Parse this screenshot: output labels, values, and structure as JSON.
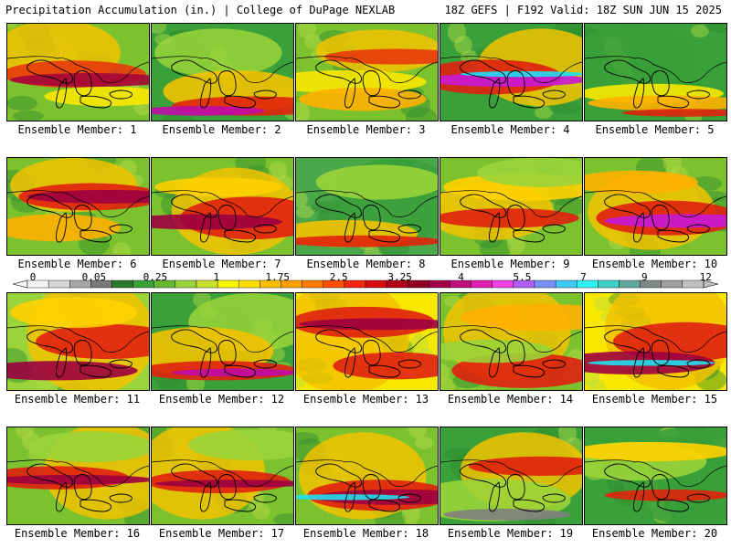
{
  "header": {
    "left": "Precipitation Accumulation (in.) | College of DuPage NEXLAB",
    "right": "18Z GEFS | F192 Valid: 18Z SUN JUN 15 2025"
  },
  "label_prefix": "Ensemble Member: ",
  "members": [
    {
      "n": "1",
      "bands": [
        [
          "#f2c200",
          0.3,
          0.34
        ],
        [
          "#e83a0c",
          0.52,
          0.14
        ],
        [
          "#a4063a",
          0.58,
          0.07
        ],
        [
          "#f8e800",
          0.75,
          0.1
        ]
      ],
      "base": "#7cc22e"
    },
    {
      "n": "2",
      "bands": [
        [
          "#9ad43a",
          0.3,
          0.25
        ],
        [
          "#f2c200",
          0.7,
          0.22
        ],
        [
          "#e0220c",
          0.85,
          0.1
        ],
        [
          "#c00aa8",
          0.9,
          0.05
        ]
      ],
      "base": "#3aa03a"
    },
    {
      "n": "3",
      "bands": [
        [
          "#f2c200",
          0.28,
          0.22
        ],
        [
          "#e83a0c",
          0.34,
          0.08
        ],
        [
          "#f8e800",
          0.6,
          0.12
        ],
        [
          "#ffb000",
          0.78,
          0.12
        ]
      ],
      "base": "#7cc22e"
    },
    {
      "n": "4",
      "bands": [
        [
          "#f2c200",
          0.45,
          0.4
        ],
        [
          "#e02010",
          0.55,
          0.18
        ],
        [
          "#c818d8",
          0.58,
          0.07
        ],
        [
          "#20e0f0",
          0.52,
          0.03
        ]
      ],
      "base": "#3aa03a"
    },
    {
      "n": "5",
      "bands": [
        [
          "#3aa03a",
          0.4,
          0.4
        ],
        [
          "#f8e800",
          0.72,
          0.1
        ],
        [
          "#ffb000",
          0.82,
          0.08
        ],
        [
          "#e0220c",
          0.92,
          0.04
        ]
      ],
      "base": "#3aa03a"
    },
    {
      "n": "6",
      "bands": [
        [
          "#f2c200",
          0.28,
          0.28
        ],
        [
          "#e02010",
          0.4,
          0.14
        ],
        [
          "#9c0040",
          0.4,
          0.07
        ],
        [
          "#ffb000",
          0.72,
          0.14
        ]
      ],
      "base": "#7cc22e"
    },
    {
      "n": "7",
      "bands": [
        [
          "#f2c200",
          0.55,
          0.45
        ],
        [
          "#e02010",
          0.62,
          0.22
        ],
        [
          "#9c0040",
          0.66,
          0.08
        ],
        [
          "#ffd000",
          0.3,
          0.1
        ]
      ],
      "base": "#7cc22e"
    },
    {
      "n": "8",
      "bands": [
        [
          "#3aa03a",
          0.45,
          0.45
        ],
        [
          "#f2c200",
          0.78,
          0.14
        ],
        [
          "#e0220c",
          0.86,
          0.06
        ],
        [
          "#9ad43a",
          0.25,
          0.18
        ]
      ],
      "base": "#4aa84a"
    },
    {
      "n": "9",
      "bands": [
        [
          "#f2c200",
          0.55,
          0.3
        ],
        [
          "#e02010",
          0.62,
          0.1
        ],
        [
          "#ffd000",
          0.3,
          0.14
        ],
        [
          "#9ad43a",
          0.15,
          0.15
        ]
      ],
      "base": "#7cc22e"
    },
    {
      "n": "10",
      "bands": [
        [
          "#f2c200",
          0.55,
          0.4
        ],
        [
          "#e02010",
          0.62,
          0.18
        ],
        [
          "#c818d8",
          0.65,
          0.07
        ],
        [
          "#ffb000",
          0.25,
          0.12
        ]
      ],
      "base": "#7cc22e"
    },
    {
      "n": "11",
      "bands": [
        [
          "#f2c200",
          0.45,
          0.6
        ],
        [
          "#e02010",
          0.5,
          0.18
        ],
        [
          "#9c0040",
          0.8,
          0.1
        ],
        [
          "#ffd000",
          0.2,
          0.16
        ]
      ],
      "base": "#9ad43a"
    },
    {
      "n": "12",
      "bands": [
        [
          "#9ad43a",
          0.3,
          0.3
        ],
        [
          "#f2c200",
          0.6,
          0.25
        ],
        [
          "#e02010",
          0.8,
          0.1
        ],
        [
          "#c00aa8",
          0.82,
          0.04
        ]
      ],
      "base": "#3aa03a"
    },
    {
      "n": "13",
      "bands": [
        [
          "#f2c200",
          0.45,
          0.6
        ],
        [
          "#e02010",
          0.3,
          0.16
        ],
        [
          "#9c0040",
          0.32,
          0.06
        ],
        [
          "#e02010",
          0.75,
          0.14
        ]
      ],
      "base": "#f8e800"
    },
    {
      "n": "14",
      "bands": [
        [
          "#f2c200",
          0.4,
          0.5
        ],
        [
          "#e02010",
          0.8,
          0.18
        ],
        [
          "#ffb000",
          0.25,
          0.14
        ],
        [
          "#9ad43a",
          0.6,
          0.12
        ]
      ],
      "base": "#7cc22e"
    },
    {
      "n": "15",
      "bands": [
        [
          "#f2c200",
          0.4,
          0.6
        ],
        [
          "#e02010",
          0.5,
          0.2
        ],
        [
          "#9c0040",
          0.72,
          0.12
        ],
        [
          "#20e0f0",
          0.72,
          0.03
        ]
      ],
      "base": "#f8e800"
    },
    {
      "n": "16",
      "bands": [
        [
          "#f2c200",
          0.45,
          0.5
        ],
        [
          "#e02010",
          0.52,
          0.12
        ],
        [
          "#9c0040",
          0.54,
          0.05
        ],
        [
          "#9ad43a",
          0.2,
          0.16
        ]
      ],
      "base": "#7cc22e"
    },
    {
      "n": "17",
      "bands": [
        [
          "#f2c200",
          0.45,
          0.5
        ],
        [
          "#e02010",
          0.56,
          0.12
        ],
        [
          "#9c0040",
          0.58,
          0.04
        ],
        [
          "#9ad43a",
          0.18,
          0.16
        ]
      ],
      "base": "#7cc22e"
    },
    {
      "n": "18",
      "bands": [
        [
          "#f2c200",
          0.5,
          0.45
        ],
        [
          "#e02010",
          0.7,
          0.16
        ],
        [
          "#9c0040",
          0.72,
          0.08
        ],
        [
          "#20e0f0",
          0.72,
          0.03
        ]
      ],
      "base": "#7cc22e"
    },
    {
      "n": "19",
      "bands": [
        [
          "#f2c200",
          0.45,
          0.4
        ],
        [
          "#e02010",
          0.4,
          0.1
        ],
        [
          "#9ad43a",
          0.75,
          0.22
        ],
        [
          "#808080",
          0.9,
          0.06
        ]
      ],
      "base": "#3aa03a"
    },
    {
      "n": "20",
      "bands": [
        [
          "#3aa03a",
          0.5,
          0.5
        ],
        [
          "#9ad43a",
          0.35,
          0.2
        ],
        [
          "#ffd000",
          0.25,
          0.1
        ],
        [
          "#e0220c",
          0.7,
          0.06
        ]
      ],
      "base": "#3aa03a"
    }
  ],
  "colorbar": {
    "ticks": [
      "0",
      "0.05",
      "0.25",
      "1",
      "1.75",
      "2.5",
      "3.25",
      "4",
      "5.5",
      "7",
      "9",
      "12"
    ],
    "colors": [
      "#f4f4f4",
      "#d8d8d8",
      "#a8a8a8",
      "#787878",
      "#2a7a2a",
      "#3aa03a",
      "#66b832",
      "#9ad43a",
      "#c8e030",
      "#f8f800",
      "#ffe000",
      "#ffc000",
      "#ffa000",
      "#ff7a00",
      "#ff5000",
      "#f02810",
      "#d80c10",
      "#b00018",
      "#900020",
      "#a0004a",
      "#c0107a",
      "#e020b0",
      "#f040e0",
      "#b060f8",
      "#7890f8",
      "#40c8f8",
      "#30f0f0",
      "#40d0c8",
      "#60a8a0",
      "#808888",
      "#a0a0a0",
      "#c0c0c0"
    ]
  }
}
